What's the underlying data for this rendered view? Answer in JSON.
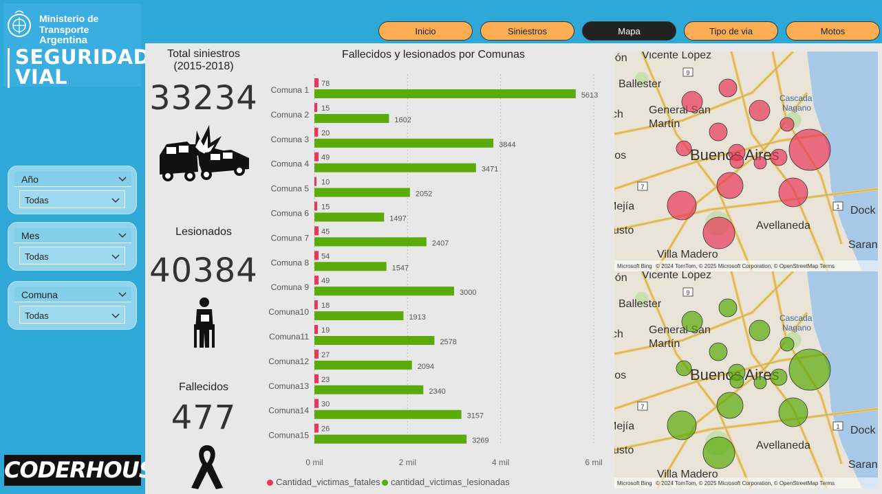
{
  "logo": {
    "ministry_line1": "Ministerio de Transporte",
    "ministry_line2": "Argentina",
    "brand_line1": "SEGURIDAD",
    "brand_line2": "VIAL"
  },
  "nav": {
    "tabs": [
      {
        "label": "Inicio",
        "active": false
      },
      {
        "label": "Siniestros",
        "active": false
      },
      {
        "label": "Mapa",
        "active": true
      },
      {
        "label": "Tipo de via",
        "active": false
      },
      {
        "label": "Motos",
        "active": false
      }
    ]
  },
  "filters": {
    "anio": {
      "title": "Año",
      "value": "Todas"
    },
    "mes": {
      "title": "Mes",
      "value": "Todas"
    },
    "comuna": {
      "title": "Comuna",
      "value": "Todas"
    }
  },
  "kpis": {
    "total_title_1": "Total siniestros",
    "total_title_2": "(2015-2018)",
    "total_value": "33234",
    "lesionados_title": "Lesionados",
    "lesionados_value": "40384",
    "fallecidos_title": "Fallecidos",
    "fallecidos_value": "477",
    "icons": [
      "car-crash-icon",
      "injured-person-icon",
      "mourning-ribbon-icon"
    ]
  },
  "chart_data": {
    "type": "bar",
    "orientation": "horizontal",
    "title": "Fallecidos y lesionados por Comunas",
    "categories": [
      "Comuna 1",
      "Comuna 2",
      "Comuna 3",
      "Comuna 4",
      "Comuna 5",
      "Comuna 6",
      "Comuna 7",
      "Comuna 8",
      "Comuna 9",
      "Comuna10",
      "Comuna11",
      "Comuna12",
      "Comuna13",
      "Comuna14",
      "Comuna15"
    ],
    "series": [
      {
        "name": "Cantidad_victimas_fatales",
        "color": "#e8375a",
        "values": [
          78,
          15,
          20,
          49,
          10,
          15,
          45,
          54,
          49,
          18,
          19,
          27,
          23,
          30,
          26
        ]
      },
      {
        "name": "cantidad_victimas_lesionadas",
        "color": "#5aaa0a",
        "values": [
          5613,
          1602,
          3844,
          3471,
          2052,
          1497,
          2407,
          1547,
          3000,
          1913,
          2578,
          2094,
          2340,
          3157,
          3269
        ]
      }
    ],
    "xlim": [
      0,
      6000
    ],
    "xticks": [
      "0 mil",
      "2 mil",
      "4 mil",
      "6 mil"
    ],
    "legend_position": "bottom",
    "grid": true
  },
  "maps": {
    "labels": [
      "Vicente López",
      "Ballester",
      "General San",
      "Martín",
      "Buenos Aires",
      "Mejía",
      "Justo",
      "Villa Madero",
      "Avellaneda",
      "Dock Su",
      "Sarandí",
      "Cascada",
      "Nagano",
      "eros",
      "eón",
      "sch"
    ],
    "route_badges": [
      "9",
      "7",
      "1"
    ],
    "footer": "© 2024 TomTom, © 2025 Microsoft Corporation, © OpenStreetMap  Terms",
    "footer_brand": "Microsoft Bing",
    "top_bubble_color": "#e8375a",
    "bottom_bubble_color": "#5aaa0a"
  },
  "footer_brand": "CODERHOUSE"
}
